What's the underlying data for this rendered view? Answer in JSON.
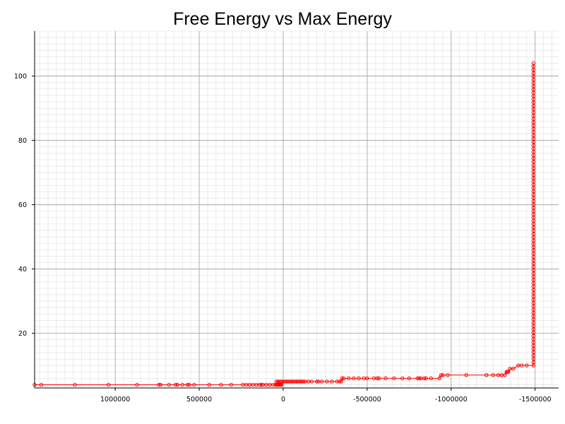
{
  "chart_data": {
    "type": "line",
    "title": "Free Energy vs Max Energy",
    "xlabel": "",
    "ylabel": "",
    "x_reversed": true,
    "xlim": [
      1480000,
      -1640000
    ],
    "ylim": [
      3,
      114
    ],
    "xticks": [
      1000000,
      500000,
      0,
      -500000,
      -1000000,
      -1500000
    ],
    "xtick_labels": [
      "1000000",
      "500000",
      "0",
      "-500000",
      "-1000000",
      "-1500000"
    ],
    "yticks": [
      20,
      40,
      60,
      80,
      100
    ],
    "ytick_labels": [
      "20",
      "40",
      "60",
      "80",
      "100"
    ],
    "grid": {
      "major": true,
      "minor": true
    },
    "series": [
      {
        "name": "",
        "color": "#ff0000",
        "marker": "open-circle",
        "x": [
          1480000,
          1440000,
          1240000,
          1040000,
          870000,
          740000,
          730000,
          680000,
          640000,
          630000,
          600000,
          570000,
          560000,
          530000,
          440000,
          370000,
          310000,
          240000,
          220000,
          200000,
          180000,
          160000,
          140000,
          130000,
          120000,
          100000,
          80000,
          60000,
          45000,
          40000,
          35000,
          30000,
          25000,
          20000,
          15000,
          10000,
          40000,
          30000,
          20000,
          10000,
          0,
          -10000,
          -20000,
          -30000,
          -40000,
          -50000,
          -60000,
          -70000,
          -80000,
          -90000,
          -100000,
          -110000,
          -120000,
          -130000,
          -150000,
          -170000,
          -200000,
          -210000,
          -230000,
          -260000,
          -290000,
          -320000,
          -335000,
          -345000,
          -350000,
          -360000,
          -390000,
          -420000,
          -450000,
          -480000,
          -500000,
          -540000,
          -560000,
          -570000,
          -610000,
          -660000,
          -710000,
          -750000,
          -800000,
          -810000,
          -820000,
          -840000,
          -850000,
          -880000,
          -930000,
          -940000,
          -950000,
          -980000,
          -1090000,
          -1210000,
          -1250000,
          -1280000,
          -1300000,
          -1320000,
          -1330000,
          -1335000,
          -1340000,
          -1350000,
          -1370000,
          -1400000,
          -1420000,
          -1450000,
          -1490000,
          -1490000
        ],
        "y": [
          4,
          4,
          4,
          4,
          4,
          4,
          4,
          4,
          4,
          4,
          4,
          4,
          4,
          4,
          4,
          4,
          4,
          4,
          4,
          4,
          4,
          4,
          4,
          4,
          4,
          4,
          4,
          4,
          4,
          4,
          4,
          4,
          4,
          4,
          4,
          4,
          5,
          5,
          5,
          5,
          5,
          5,
          5,
          5,
          5,
          5,
          5,
          5,
          5,
          5,
          5,
          5,
          5,
          5,
          5,
          5,
          5,
          5,
          5,
          5,
          5,
          5,
          5,
          5,
          6,
          6,
          6,
          6,
          6,
          6,
          6,
          6,
          6,
          6,
          6,
          6,
          6,
          6,
          6,
          6,
          6,
          6,
          6,
          6,
          6,
          7,
          7,
          7,
          7,
          7,
          7,
          7,
          7,
          7,
          8,
          8,
          8,
          9,
          9,
          10,
          10,
          10,
          10,
          104
        ]
      }
    ]
  }
}
